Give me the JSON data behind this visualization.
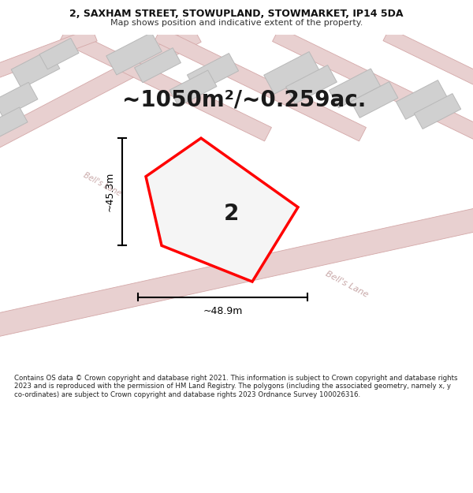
{
  "title_line1": "2, SAXHAM STREET, STOWUPLAND, STOWMARKET, IP14 5DA",
  "title_line2": "Map shows position and indicative extent of the property.",
  "area_text": "~1050m²/~0.259ac.",
  "label_number": "2",
  "dim_horizontal": "~48.9m",
  "dim_vertical": "~45.3m",
  "bells_lane_label1": "Bell's Lane",
  "bells_lane_label2": "Bell's Lane",
  "footer_text": "Contains OS data © Crown copyright and database right 2021. This information is subject to Crown copyright and database rights 2023 and is reproduced with the permission of HM Land Registry. The polygons (including the associated geometry, namely x, y co-ordinates) are subject to Crown copyright and database rights 2023 Ordnance Survey 100026316.",
  "bg_color": "#ffffff",
  "map_bg": "#ffffff",
  "road_fill": "#e8d0d0",
  "road_edge": "#d4a8a8",
  "building_fill": "#d0d0d0",
  "building_edge": "#b8b8b8",
  "plot_fill": "#f5f5f5",
  "plot_edge": "#ff0000",
  "dim_color": "#000000",
  "title_fontsize": 9,
  "subtitle_fontsize": 8,
  "area_fontsize": 20,
  "label_fontsize": 20,
  "dim_fontsize": 9,
  "road_label_color": "#c8a8a8",
  "road_label_fontsize": 8
}
